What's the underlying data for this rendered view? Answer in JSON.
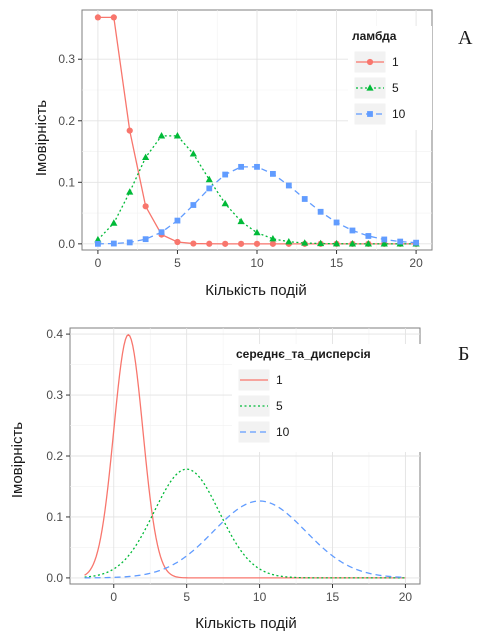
{
  "chart_data": [
    {
      "panel_label": "А",
      "type": "line",
      "xlabel": "Кількість подій",
      "ylabel": "Імовірність",
      "xlim": [
        -1,
        21
      ],
      "ylim": [
        -0.01,
        0.38
      ],
      "xticks": [
        0,
        5,
        10,
        15,
        20
      ],
      "yticks": [
        0.0,
        0.1,
        0.2,
        0.3
      ],
      "ytick_labels": [
        "0.0",
        "0.1",
        "0.2",
        "0.3"
      ],
      "grid": true,
      "legend_title": "ламбда",
      "legend_position": "top-right",
      "x": [
        0,
        1,
        2,
        3,
        4,
        5,
        6,
        7,
        8,
        9,
        10,
        11,
        12,
        13,
        14,
        15,
        16,
        17,
        18,
        19,
        20
      ],
      "series": [
        {
          "name": "1",
          "color": "#F8766D",
          "line": "solid",
          "marker": "circle",
          "values": [
            0.368,
            0.368,
            0.184,
            0.061,
            0.015,
            0.003,
            0.0005,
            0.0001,
            0,
            0,
            0,
            0,
            0,
            0,
            0,
            0,
            0,
            0,
            0,
            0,
            0
          ]
        },
        {
          "name": "5",
          "color": "#00BA38",
          "line": "dotted",
          "marker": "triangle",
          "values": [
            0.0067,
            0.0337,
            0.0842,
            0.1404,
            0.1755,
            0.1755,
            0.1462,
            0.1044,
            0.0653,
            0.0363,
            0.0181,
            0.0082,
            0.0034,
            0.0013,
            0.0005,
            0.0002,
            0,
            0,
            0,
            0,
            0
          ]
        },
        {
          "name": "10",
          "color": "#619CFF",
          "line": "dashed",
          "marker": "square",
          "values": [
            5e-05,
            0.0005,
            0.0023,
            0.0076,
            0.0189,
            0.0378,
            0.0631,
            0.0901,
            0.1126,
            0.1251,
            0.1251,
            0.1137,
            0.0948,
            0.0729,
            0.0521,
            0.0347,
            0.0217,
            0.0128,
            0.0071,
            0.0037,
            0.0019
          ]
        }
      ]
    },
    {
      "panel_label": "Б",
      "type": "line",
      "xlabel": "Кількість подій",
      "ylabel": "Імовірність",
      "xlim": [
        -3,
        21
      ],
      "ylim": [
        -0.01,
        0.41
      ],
      "xticks": [
        0,
        5,
        10,
        15,
        20
      ],
      "yticks": [
        0.0,
        0.1,
        0.2,
        0.3,
        0.4
      ],
      "ytick_labels": [
        "0.0",
        "0.1",
        "0.2",
        "0.3",
        "0.4"
      ],
      "grid": true,
      "legend_title": "середнє_та_дисперсія",
      "legend_position": "top-right",
      "x_range": [
        -2,
        20
      ],
      "series": [
        {
          "name": "1",
          "color": "#F8766D",
          "line": "solid",
          "mean": 1,
          "variance": 1
        },
        {
          "name": "5",
          "color": "#00BA38",
          "line": "dotted",
          "mean": 5,
          "variance": 5
        },
        {
          "name": "10",
          "color": "#619CFF",
          "line": "dashed",
          "mean": 10,
          "variance": 10
        }
      ]
    }
  ]
}
